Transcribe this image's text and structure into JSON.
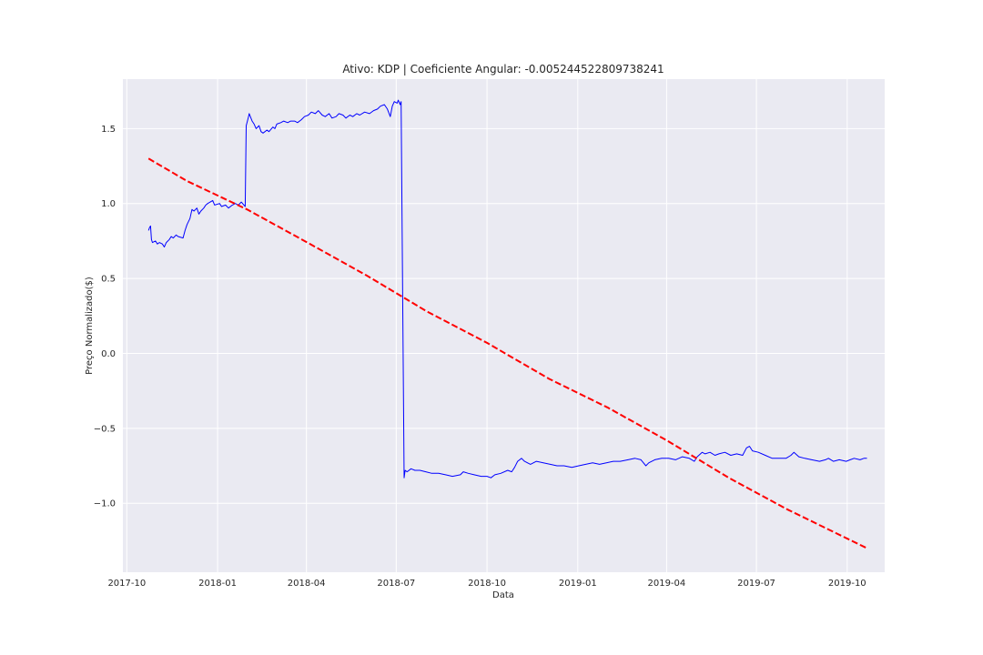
{
  "chart_data": {
    "type": "line",
    "title": "Ativo: KDP | Coeficiente Angular: -0.005244522809738241",
    "xlabel": "Data",
    "ylabel": "Preço Normalizado($)",
    "x_axis_type": "date",
    "xlim": [
      "2017-09-27",
      "2019-11-08"
    ],
    "ylim": [
      -1.46,
      1.83
    ],
    "grid": true,
    "style": "seaborn-darkgrid",
    "background_color": "#eaeaf2",
    "x_ticks": [
      {
        "value": "2017-10-01",
        "label": "2017-10"
      },
      {
        "value": "2018-01-01",
        "label": "2018-01"
      },
      {
        "value": "2018-04-01",
        "label": "2018-04"
      },
      {
        "value": "2018-07-01",
        "label": "2018-07"
      },
      {
        "value": "2018-10-01",
        "label": "2018-10"
      },
      {
        "value": "2019-01-01",
        "label": "2019-01"
      },
      {
        "value": "2019-04-01",
        "label": "2019-04"
      },
      {
        "value": "2019-07-01",
        "label": "2019-07"
      },
      {
        "value": "2019-10-01",
        "label": "2019-10"
      }
    ],
    "y_ticks": [
      {
        "value": 1.5,
        "label": "1.5"
      },
      {
        "value": 1.0,
        "label": "1.0"
      },
      {
        "value": 0.5,
        "label": "0.5"
      },
      {
        "value": 0.0,
        "label": "0.0"
      },
      {
        "value": -0.5,
        "label": "−0.5"
      },
      {
        "value": -1.0,
        "label": "−1.0"
      }
    ],
    "series": [
      {
        "color": "#0000ff",
        "linestyle": "solid",
        "points": [
          [
            "2017-10-23",
            0.82
          ],
          [
            "2017-10-24",
            0.84
          ],
          [
            "2017-10-25",
            0.85
          ],
          [
            "2017-10-26",
            0.76
          ],
          [
            "2017-10-27",
            0.74
          ],
          [
            "2017-10-30",
            0.75
          ],
          [
            "2017-11-01",
            0.73
          ],
          [
            "2017-11-03",
            0.74
          ],
          [
            "2017-11-06",
            0.73
          ],
          [
            "2017-11-08",
            0.71
          ],
          [
            "2017-11-10",
            0.74
          ],
          [
            "2017-11-13",
            0.76
          ],
          [
            "2017-11-15",
            0.78
          ],
          [
            "2017-11-17",
            0.77
          ],
          [
            "2017-11-20",
            0.79
          ],
          [
            "2017-11-22",
            0.78
          ],
          [
            "2017-11-27",
            0.77
          ],
          [
            "2017-11-29",
            0.82
          ],
          [
            "2017-12-01",
            0.86
          ],
          [
            "2017-12-04",
            0.9
          ],
          [
            "2017-12-06",
            0.96
          ],
          [
            "2017-12-08",
            0.95
          ],
          [
            "2017-12-11",
            0.97
          ],
          [
            "2017-12-13",
            0.93
          ],
          [
            "2017-12-15",
            0.95
          ],
          [
            "2017-12-18",
            0.97
          ],
          [
            "2017-12-20",
            0.99
          ],
          [
            "2017-12-22",
            1.0
          ],
          [
            "2017-12-27",
            1.02
          ],
          [
            "2017-12-29",
            0.99
          ],
          [
            "2018-01-03",
            1.0
          ],
          [
            "2018-01-05",
            0.98
          ],
          [
            "2018-01-09",
            0.99
          ],
          [
            "2018-01-12",
            0.97
          ],
          [
            "2018-01-16",
            0.99
          ],
          [
            "2018-01-19",
            1.0
          ],
          [
            "2018-01-22",
            0.99
          ],
          [
            "2018-01-25",
            1.01
          ],
          [
            "2018-01-29",
            0.98
          ],
          [
            "2018-01-30",
            1.52
          ],
          [
            "2018-02-01",
            1.57
          ],
          [
            "2018-02-02",
            1.6
          ],
          [
            "2018-02-05",
            1.55
          ],
          [
            "2018-02-07",
            1.53
          ],
          [
            "2018-02-09",
            1.5
          ],
          [
            "2018-02-12",
            1.52
          ],
          [
            "2018-02-14",
            1.48
          ],
          [
            "2018-02-16",
            1.47
          ],
          [
            "2018-02-20",
            1.49
          ],
          [
            "2018-02-22",
            1.48
          ],
          [
            "2018-02-26",
            1.51
          ],
          [
            "2018-02-28",
            1.5
          ],
          [
            "2018-03-02",
            1.53
          ],
          [
            "2018-03-06",
            1.54
          ],
          [
            "2018-03-09",
            1.55
          ],
          [
            "2018-03-13",
            1.54
          ],
          [
            "2018-03-16",
            1.55
          ],
          [
            "2018-03-20",
            1.55
          ],
          [
            "2018-03-23",
            1.54
          ],
          [
            "2018-03-27",
            1.56
          ],
          [
            "2018-03-30",
            1.58
          ],
          [
            "2018-04-03",
            1.59
          ],
          [
            "2018-04-06",
            1.61
          ],
          [
            "2018-04-10",
            1.6
          ],
          [
            "2018-04-13",
            1.62
          ],
          [
            "2018-04-17",
            1.59
          ],
          [
            "2018-04-20",
            1.58
          ],
          [
            "2018-04-24",
            1.6
          ],
          [
            "2018-04-27",
            1.57
          ],
          [
            "2018-05-01",
            1.58
          ],
          [
            "2018-05-04",
            1.6
          ],
          [
            "2018-05-08",
            1.59
          ],
          [
            "2018-05-11",
            1.57
          ],
          [
            "2018-05-15",
            1.59
          ],
          [
            "2018-05-18",
            1.58
          ],
          [
            "2018-05-22",
            1.6
          ],
          [
            "2018-05-25",
            1.59
          ],
          [
            "2018-05-30",
            1.61
          ],
          [
            "2018-06-04",
            1.6
          ],
          [
            "2018-06-08",
            1.62
          ],
          [
            "2018-06-12",
            1.63
          ],
          [
            "2018-06-15",
            1.65
          ],
          [
            "2018-06-19",
            1.66
          ],
          [
            "2018-06-22",
            1.63
          ],
          [
            "2018-06-25",
            1.58
          ],
          [
            "2018-06-27",
            1.65
          ],
          [
            "2018-06-29",
            1.68
          ],
          [
            "2018-07-02",
            1.67
          ],
          [
            "2018-07-03",
            1.69
          ],
          [
            "2018-07-05",
            1.66
          ],
          [
            "2018-07-06",
            1.68
          ],
          [
            "2018-07-09",
            -0.83
          ],
          [
            "2018-07-10",
            -0.78
          ],
          [
            "2018-07-12",
            -0.79
          ],
          [
            "2018-07-16",
            -0.77
          ],
          [
            "2018-07-20",
            -0.78
          ],
          [
            "2018-07-25",
            -0.78
          ],
          [
            "2018-07-31",
            -0.79
          ],
          [
            "2018-08-06",
            -0.8
          ],
          [
            "2018-08-13",
            -0.8
          ],
          [
            "2018-08-20",
            -0.81
          ],
          [
            "2018-08-27",
            -0.82
          ],
          [
            "2018-09-04",
            -0.81
          ],
          [
            "2018-09-07",
            -0.79
          ],
          [
            "2018-09-12",
            -0.8
          ],
          [
            "2018-09-18",
            -0.81
          ],
          [
            "2018-09-25",
            -0.82
          ],
          [
            "2018-10-01",
            -0.82
          ],
          [
            "2018-10-05",
            -0.83
          ],
          [
            "2018-10-09",
            -0.81
          ],
          [
            "2018-10-15",
            -0.8
          ],
          [
            "2018-10-22",
            -0.78
          ],
          [
            "2018-10-26",
            -0.79
          ],
          [
            "2018-10-29",
            -0.76
          ],
          [
            "2018-11-01",
            -0.72
          ],
          [
            "2018-11-05",
            -0.7
          ],
          [
            "2018-11-08",
            -0.72
          ],
          [
            "2018-11-14",
            -0.74
          ],
          [
            "2018-11-20",
            -0.72
          ],
          [
            "2018-11-27",
            -0.73
          ],
          [
            "2018-12-04",
            -0.74
          ],
          [
            "2018-12-11",
            -0.75
          ],
          [
            "2018-12-18",
            -0.75
          ],
          [
            "2018-12-26",
            -0.76
          ],
          [
            "2019-01-02",
            -0.75
          ],
          [
            "2019-01-09",
            -0.74
          ],
          [
            "2019-01-16",
            -0.73
          ],
          [
            "2019-01-23",
            -0.74
          ],
          [
            "2019-01-30",
            -0.73
          ],
          [
            "2019-02-06",
            -0.72
          ],
          [
            "2019-02-13",
            -0.72
          ],
          [
            "2019-02-21",
            -0.71
          ],
          [
            "2019-02-28",
            -0.7
          ],
          [
            "2019-03-06",
            -0.71
          ],
          [
            "2019-03-11",
            -0.75
          ],
          [
            "2019-03-14",
            -0.73
          ],
          [
            "2019-03-20",
            -0.71
          ],
          [
            "2019-03-27",
            -0.7
          ],
          [
            "2019-04-03",
            -0.7
          ],
          [
            "2019-04-10",
            -0.71
          ],
          [
            "2019-04-17",
            -0.69
          ],
          [
            "2019-04-24",
            -0.7
          ],
          [
            "2019-04-29",
            -0.72
          ],
          [
            "2019-05-02",
            -0.69
          ],
          [
            "2019-05-07",
            -0.66
          ],
          [
            "2019-05-10",
            -0.67
          ],
          [
            "2019-05-15",
            -0.66
          ],
          [
            "2019-05-20",
            -0.68
          ],
          [
            "2019-05-24",
            -0.67
          ],
          [
            "2019-05-30",
            -0.66
          ],
          [
            "2019-06-05",
            -0.68
          ],
          [
            "2019-06-11",
            -0.67
          ],
          [
            "2019-06-17",
            -0.68
          ],
          [
            "2019-06-21",
            -0.63
          ],
          [
            "2019-06-24",
            -0.62
          ],
          [
            "2019-06-27",
            -0.65
          ],
          [
            "2019-07-03",
            -0.66
          ],
          [
            "2019-07-10",
            -0.68
          ],
          [
            "2019-07-17",
            -0.7
          ],
          [
            "2019-07-24",
            -0.7
          ],
          [
            "2019-07-31",
            -0.7
          ],
          [
            "2019-08-05",
            -0.68
          ],
          [
            "2019-08-08",
            -0.66
          ],
          [
            "2019-08-13",
            -0.69
          ],
          [
            "2019-08-19",
            -0.7
          ],
          [
            "2019-08-26",
            -0.71
          ],
          [
            "2019-09-03",
            -0.72
          ],
          [
            "2019-09-09",
            -0.71
          ],
          [
            "2019-09-12",
            -0.7
          ],
          [
            "2019-09-17",
            -0.72
          ],
          [
            "2019-09-23",
            -0.71
          ],
          [
            "2019-09-30",
            -0.72
          ],
          [
            "2019-10-04",
            -0.71
          ],
          [
            "2019-10-08",
            -0.7
          ],
          [
            "2019-10-14",
            -0.71
          ],
          [
            "2019-10-18",
            -0.7
          ],
          [
            "2019-10-21",
            -0.7
          ]
        ]
      },
      {
        "color": "#ff0000",
        "linestyle": "dashed",
        "points": [
          [
            "2017-10-23",
            1.3
          ],
          [
            "2017-12-01",
            1.15
          ],
          [
            "2018-01-31",
            0.96
          ],
          [
            "2018-04-02",
            0.74
          ],
          [
            "2018-06-01",
            0.52
          ],
          [
            "2018-08-01",
            0.28
          ],
          [
            "2018-10-01",
            0.07
          ],
          [
            "2018-12-03",
            -0.17
          ],
          [
            "2019-01-31",
            -0.36
          ],
          [
            "2019-04-01",
            -0.58
          ],
          [
            "2019-06-03",
            -0.83
          ],
          [
            "2019-08-01",
            -1.04
          ],
          [
            "2019-10-21",
            -1.3
          ]
        ]
      }
    ]
  }
}
